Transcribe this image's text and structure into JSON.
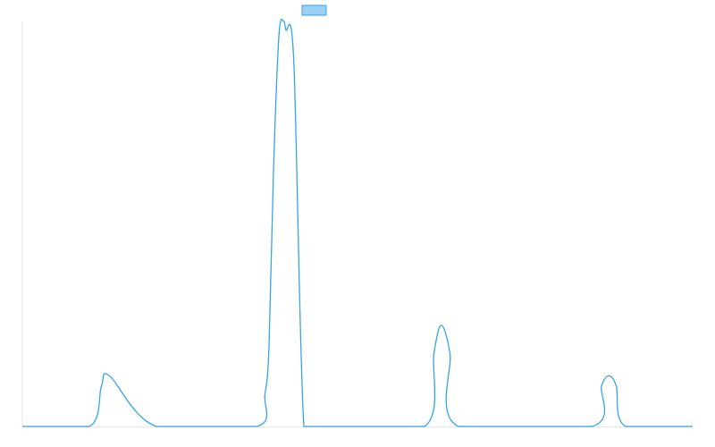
{
  "chart_data": {
    "type": "line",
    "title": "",
    "xlabel": "",
    "ylabel": "",
    "grid": false,
    "legend": "top-center",
    "xlim": [
      0,
      100
    ],
    "ylim": [
      0,
      100
    ],
    "series": [
      {
        "name": "",
        "color": "#36a2eb",
        "fill": "#9ad0f5",
        "x": [
          0,
          10,
          11.8,
          13,
          20,
          35,
          36.2,
          36.8,
          37.5,
          38.3,
          39,
          39.3,
          40.5,
          42,
          44.2,
          45,
          60,
          61.4,
          62.5,
          63.8,
          65,
          85,
          86.4,
          87.5,
          88.6,
          90,
          100
        ],
        "values": [
          0,
          0,
          10,
          12.5,
          0,
          0,
          8,
          20,
          65,
          97,
          100,
          98,
          90,
          0,
          0,
          0,
          0,
          18,
          25,
          18,
          0,
          0,
          10,
          12.5,
          10,
          0,
          0
        ]
      }
    ]
  }
}
